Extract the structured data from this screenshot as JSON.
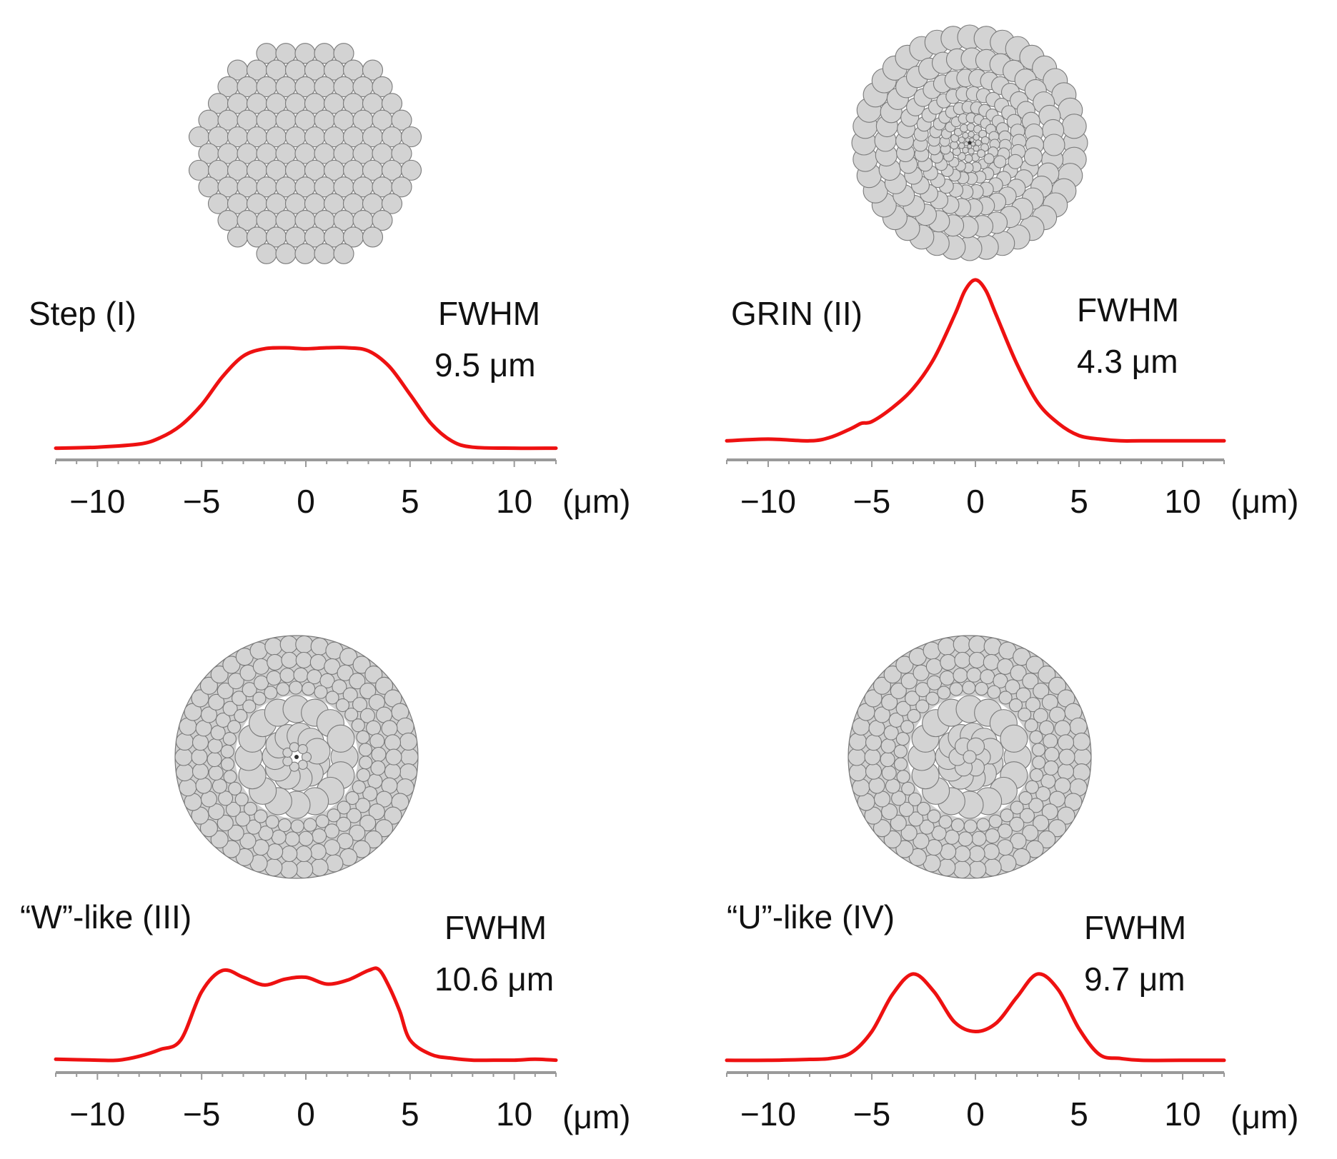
{
  "colors": {
    "curve": "#ee1111",
    "axis": "#9a9a9a",
    "cell_fill": "#d3d3d3",
    "cell_stroke": "#7a7a7a",
    "text": "#111111"
  },
  "chart_data": [
    {
      "type": "line",
      "title": "Step (I)",
      "annotation_line1": "FWHM",
      "annotation_line2": "9.5 μm",
      "x_unit": "(μm)",
      "xlim": [
        -12,
        12
      ],
      "ylim": [
        0,
        1.05
      ],
      "ticks": [
        -10,
        -5,
        0,
        5,
        10
      ],
      "tick_labels": [
        "−10",
        "−5",
        "0",
        "5",
        "10"
      ],
      "cross_section": "step",
      "x": [
        -12,
        -10,
        -8,
        -7,
        -6,
        -5,
        -4,
        -3,
        -2,
        -1,
        0,
        1,
        2,
        3,
        4,
        5,
        6,
        7,
        8,
        10,
        12
      ],
      "values": [
        0.03,
        0.04,
        0.07,
        0.13,
        0.25,
        0.45,
        0.72,
        0.92,
        0.99,
        1.0,
        0.99,
        1.0,
        1.0,
        0.97,
        0.82,
        0.55,
        0.27,
        0.1,
        0.04,
        0.03,
        0.03
      ]
    },
    {
      "type": "line",
      "title": "GRIN (II)",
      "annotation_line1": "FWHM",
      "annotation_line2": "4.3 μm",
      "x_unit": "(μm)",
      "xlim": [
        -12,
        12
      ],
      "ylim": [
        0,
        1.05
      ],
      "ticks": [
        -10,
        -5,
        0,
        5,
        10
      ],
      "tick_labels": [
        "−10",
        "−5",
        "0",
        "5",
        "10"
      ],
      "cross_section": "grin",
      "x": [
        -12,
        -10,
        -8,
        -7,
        -6,
        -5.5,
        -5,
        -4,
        -3,
        -2,
        -1,
        -0.5,
        0,
        0.5,
        1,
        2,
        3,
        4,
        5,
        6,
        7,
        8,
        10,
        12
      ],
      "values": [
        0.06,
        0.07,
        0.06,
        0.08,
        0.13,
        0.16,
        0.17,
        0.25,
        0.36,
        0.53,
        0.78,
        0.92,
        0.98,
        0.92,
        0.78,
        0.5,
        0.28,
        0.16,
        0.09,
        0.07,
        0.06,
        0.06,
        0.06,
        0.06
      ]
    },
    {
      "type": "line",
      "title": "“W”-like (III)",
      "annotation_line1": "FWHM",
      "annotation_line2": "10.6 μm",
      "x_unit": "(μm)",
      "xlim": [
        -12,
        12
      ],
      "ylim": [
        0,
        1.05
      ],
      "ticks": [
        -10,
        -5,
        0,
        5,
        10
      ],
      "tick_labels": [
        "−10",
        "−5",
        "0",
        "5",
        "10"
      ],
      "cross_section": "w",
      "x": [
        -12,
        -10,
        -9,
        -8,
        -7,
        -6,
        -5,
        -4,
        -3,
        -2,
        -1,
        0,
        1,
        2,
        3,
        3.5,
        4,
        4.5,
        5,
        6,
        7,
        8,
        9,
        10,
        11,
        12
      ],
      "values": [
        0.05,
        0.04,
        0.04,
        0.08,
        0.15,
        0.25,
        0.75,
        0.97,
        0.9,
        0.82,
        0.88,
        0.9,
        0.83,
        0.87,
        0.97,
        0.98,
        0.8,
        0.55,
        0.25,
        0.1,
        0.06,
        0.04,
        0.04,
        0.04,
        0.05,
        0.04
      ]
    },
    {
      "type": "line",
      "title": "“U”-like (IV)",
      "annotation_line1": "FWHM",
      "annotation_line2": "9.7 μm",
      "x_unit": "(μm)",
      "xlim": [
        -12,
        12
      ],
      "ylim": [
        0,
        1.05
      ],
      "ticks": [
        -10,
        -5,
        0,
        5,
        10
      ],
      "tick_labels": [
        "−10",
        "−5",
        "0",
        "5",
        "10"
      ],
      "cross_section": "u",
      "x": [
        -12,
        -10,
        -8,
        -7,
        -6,
        -5,
        -4,
        -3,
        -2,
        -1,
        0,
        1,
        2,
        3,
        4,
        5,
        6,
        7,
        8,
        10,
        12
      ],
      "values": [
        0.04,
        0.04,
        0.05,
        0.06,
        0.12,
        0.35,
        0.75,
        0.97,
        0.78,
        0.45,
        0.35,
        0.44,
        0.72,
        0.97,
        0.8,
        0.38,
        0.1,
        0.06,
        0.04,
        0.04,
        0.04
      ]
    }
  ]
}
